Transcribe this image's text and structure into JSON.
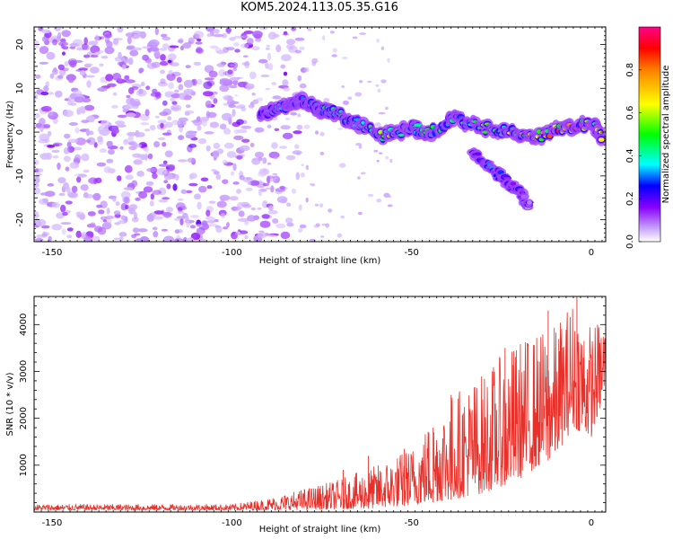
{
  "title": "KOM5.2024.113.05.35.G16",
  "chart_data": [
    {
      "type": "heatmap",
      "xlabel": "Height of straight line (km)",
      "ylabel": "Frequency (Hz)",
      "xlim": [
        -155,
        4
      ],
      "ylim": [
        -25,
        24
      ],
      "xticks": [
        -150,
        -100,
        -50,
        0
      ],
      "yticks": [
        -20,
        -10,
        0,
        10,
        20
      ],
      "colorbar": {
        "label": "Normalized spectral amplitude",
        "ticks": [
          "0.0",
          "0.2",
          "0.4",
          "0.6",
          "0.8"
        ],
        "range": [
          0,
          1
        ],
        "colors": [
          "#ffffff",
          "#8800ff",
          "#0000ff",
          "#00ffff",
          "#00ff00",
          "#ffff00",
          "#ff0000",
          "#ff0088"
        ]
      },
      "ridge": [
        {
          "x": -92,
          "y": 4,
          "v": 0.3
        },
        {
          "x": -85,
          "y": 6,
          "v": 0.45
        },
        {
          "x": -80,
          "y": 7,
          "v": 0.55
        },
        {
          "x": -75,
          "y": 5,
          "v": 0.5
        },
        {
          "x": -70,
          "y": 4,
          "v": 0.5
        },
        {
          "x": -65,
          "y": 2,
          "v": 0.45
        },
        {
          "x": -58,
          "y": -1,
          "v": 0.6
        },
        {
          "x": -50,
          "y": 1,
          "v": 0.55
        },
        {
          "x": -45,
          "y": 0,
          "v": 0.5
        },
        {
          "x": -38,
          "y": 3,
          "v": 0.5
        },
        {
          "x": -30,
          "y": 1,
          "v": 0.6
        },
        {
          "x": -22,
          "y": 0,
          "v": 0.7
        },
        {
          "x": -15,
          "y": -1,
          "v": 0.75
        },
        {
          "x": -7,
          "y": 1,
          "v": 0.95
        },
        {
          "x": 0,
          "y": 2,
          "v": 0.8
        },
        {
          "x": 3,
          "y": -1,
          "v": 0.7
        }
      ],
      "branch": [
        {
          "x": -33,
          "y": -5,
          "v": 0.3
        },
        {
          "x": -28,
          "y": -8,
          "v": 0.35
        },
        {
          "x": -24,
          "y": -11,
          "v": 0.25
        },
        {
          "x": -20,
          "y": -14,
          "v": 0.15
        },
        {
          "x": -17,
          "y": -17,
          "v": 0.1
        }
      ]
    },
    {
      "type": "line",
      "xlabel": "Height of straight line (km)",
      "ylabel": "SNR (10 * v/v)",
      "xlim": [
        -155,
        4
      ],
      "ylim": [
        0,
        4600
      ],
      "xticks": [
        -150,
        -100,
        -50,
        0
      ],
      "yticks": [
        1000,
        2000,
        3000,
        4000
      ],
      "color": "#e8302a",
      "series": [
        {
          "envelope": [
            {
              "x": -155,
              "hi": 170,
              "lo": 40
            },
            {
              "x": -100,
              "hi": 170,
              "lo": 40
            },
            {
              "x": -90,
              "hi": 300,
              "lo": 40
            },
            {
              "x": -80,
              "hi": 500,
              "lo": 50
            },
            {
              "x": -70,
              "hi": 700,
              "lo": 60
            },
            {
              "x": -60,
              "hi": 1000,
              "lo": 80
            },
            {
              "x": -50,
              "hi": 1400,
              "lo": 150
            },
            {
              "x": -40,
              "hi": 2500,
              "lo": 250
            },
            {
              "x": -30,
              "hi": 3000,
              "lo": 400
            },
            {
              "x": -20,
              "hi": 3700,
              "lo": 700
            },
            {
              "x": -10,
              "hi": 4000,
              "lo": 1200
            },
            {
              "x": -5,
              "hi": 4600,
              "lo": 1800
            },
            {
              "x": 0,
              "hi": 4000,
              "lo": 1600
            },
            {
              "x": 4,
              "hi": 4200,
              "lo": 2600
            }
          ],
          "peaks": [
            {
              "x": -69,
              "y": 900
            },
            {
              "x": -62,
              "y": 1200
            },
            {
              "x": -52,
              "y": 1350
            },
            {
              "x": -44,
              "y": 1800
            },
            {
              "x": -39,
              "y": 2500
            },
            {
              "x": -24,
              "y": 3500
            },
            {
              "x": -12,
              "y": 4300
            },
            {
              "x": -4,
              "y": 4650
            },
            {
              "x": 4,
              "y": 4400
            }
          ]
        }
      ]
    }
  ]
}
